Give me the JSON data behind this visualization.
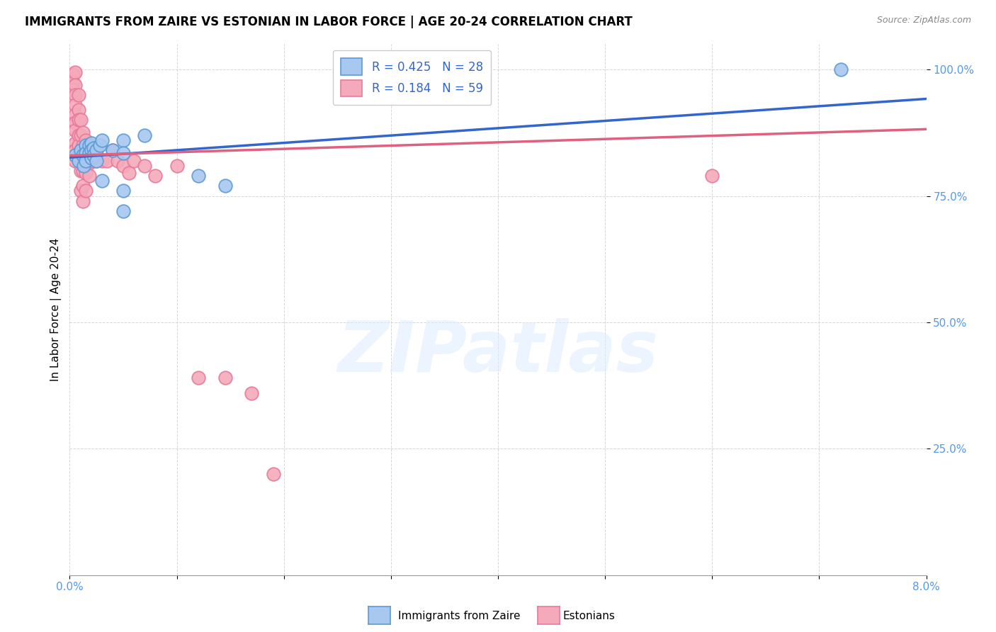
{
  "title": "IMMIGRANTS FROM ZAIRE VS ESTONIAN IN LABOR FORCE | AGE 20-24 CORRELATION CHART",
  "source": "Source: ZipAtlas.com",
  "ylabel": "In Labor Force | Age 20-24",
  "ytick_labels": [
    "100.0%",
    "75.0%",
    "50.0%",
    "25.0%"
  ],
  "ytick_values": [
    1.0,
    0.75,
    0.5,
    0.25
  ],
  "xmin": 0.0,
  "xmax": 0.08,
  "ymin": 0.0,
  "ymax": 1.05,
  "legend_label_blue": "Immigrants from Zaire",
  "legend_label_pink": "Estonians",
  "watermark": "ZIPatlas",
  "blue_color": "#A8C8F0",
  "pink_color": "#F4AABB",
  "blue_edge_color": "#5B9BD5",
  "pink_edge_color": "#E87A9A",
  "blue_line_color": "#3366CC",
  "pink_line_color": "#E06080",
  "legend_text_color": "#3366CC",
  "tick_color": "#5599EE",
  "blue_scatter": [
    [
      0.0005,
      0.83
    ],
    [
      0.0008,
      0.82
    ],
    [
      0.001,
      0.84
    ],
    [
      0.0012,
      0.83
    ],
    [
      0.0013,
      0.81
    ],
    [
      0.0015,
      0.85
    ],
    [
      0.0015,
      0.835
    ],
    [
      0.0015,
      0.82
    ],
    [
      0.0018,
      0.85
    ],
    [
      0.0018,
      0.835
    ],
    [
      0.002,
      0.855
    ],
    [
      0.002,
      0.84
    ],
    [
      0.002,
      0.825
    ],
    [
      0.0022,
      0.845
    ],
    [
      0.0022,
      0.83
    ],
    [
      0.0025,
      0.84
    ],
    [
      0.0025,
      0.82
    ],
    [
      0.0028,
      0.85
    ],
    [
      0.003,
      0.86
    ],
    [
      0.003,
      0.78
    ],
    [
      0.004,
      0.84
    ],
    [
      0.005,
      0.86
    ],
    [
      0.005,
      0.835
    ],
    [
      0.005,
      0.76
    ],
    [
      0.005,
      0.72
    ],
    [
      0.007,
      0.87
    ],
    [
      0.012,
      0.79
    ],
    [
      0.0145,
      0.77
    ],
    [
      0.072,
      1.0
    ]
  ],
  "pink_scatter": [
    [
      0.0003,
      0.99
    ],
    [
      0.0003,
      0.975
    ],
    [
      0.0003,
      0.96
    ],
    [
      0.0005,
      0.995
    ],
    [
      0.0005,
      0.97
    ],
    [
      0.0005,
      0.95
    ],
    [
      0.0005,
      0.93
    ],
    [
      0.0005,
      0.91
    ],
    [
      0.0005,
      0.895
    ],
    [
      0.0005,
      0.88
    ],
    [
      0.0005,
      0.855
    ],
    [
      0.0005,
      0.84
    ],
    [
      0.0005,
      0.82
    ],
    [
      0.0008,
      0.95
    ],
    [
      0.0008,
      0.92
    ],
    [
      0.0008,
      0.9
    ],
    [
      0.0008,
      0.87
    ],
    [
      0.0008,
      0.85
    ],
    [
      0.0008,
      0.83
    ],
    [
      0.001,
      0.9
    ],
    [
      0.001,
      0.87
    ],
    [
      0.001,
      0.84
    ],
    [
      0.001,
      0.82
    ],
    [
      0.001,
      0.8
    ],
    [
      0.001,
      0.76
    ],
    [
      0.0012,
      0.875
    ],
    [
      0.0012,
      0.85
    ],
    [
      0.0012,
      0.825
    ],
    [
      0.0012,
      0.8
    ],
    [
      0.0012,
      0.77
    ],
    [
      0.0012,
      0.74
    ],
    [
      0.0015,
      0.86
    ],
    [
      0.0015,
      0.84
    ],
    [
      0.0015,
      0.82
    ],
    [
      0.0015,
      0.795
    ],
    [
      0.0015,
      0.76
    ],
    [
      0.0018,
      0.84
    ],
    [
      0.0018,
      0.815
    ],
    [
      0.0018,
      0.79
    ],
    [
      0.002,
      0.84
    ],
    [
      0.002,
      0.82
    ],
    [
      0.0022,
      0.835
    ],
    [
      0.0025,
      0.83
    ],
    [
      0.0025,
      0.82
    ],
    [
      0.003,
      0.82
    ],
    [
      0.0035,
      0.82
    ],
    [
      0.004,
      0.84
    ],
    [
      0.0045,
      0.82
    ],
    [
      0.005,
      0.81
    ],
    [
      0.0055,
      0.795
    ],
    [
      0.006,
      0.82
    ],
    [
      0.007,
      0.81
    ],
    [
      0.008,
      0.79
    ],
    [
      0.01,
      0.81
    ],
    [
      0.012,
      0.39
    ],
    [
      0.0145,
      0.39
    ],
    [
      0.017,
      0.36
    ],
    [
      0.019,
      0.2
    ],
    [
      0.06,
      0.79
    ]
  ],
  "blue_trendline": [
    [
      0.0,
      0.826
    ],
    [
      0.08,
      0.942
    ]
  ],
  "pink_trendline": [
    [
      0.0,
      0.83
    ],
    [
      0.08,
      0.882
    ]
  ]
}
